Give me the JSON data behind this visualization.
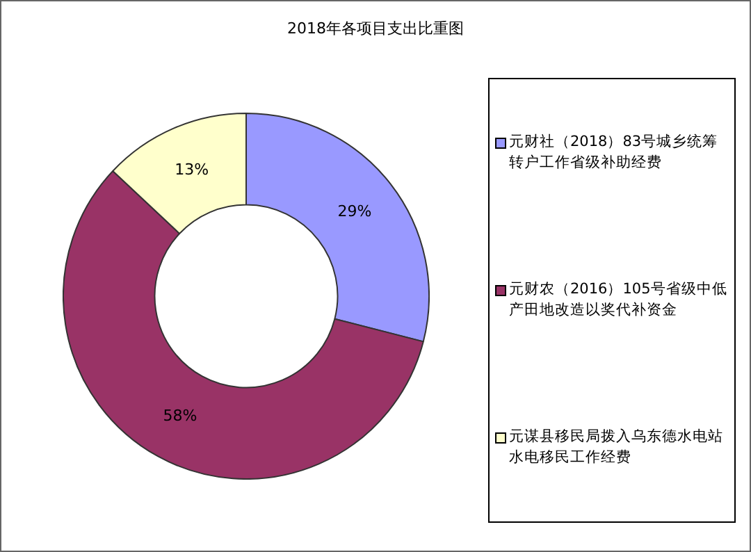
{
  "chart_data": {
    "type": "donut",
    "title": "2018年各项目支出比重图",
    "categories": [
      "元财社（2018）83号城乡统筹转户工作省级补助经费",
      "元财农（2016）105号省级中低产田地改造以奖代补资金",
      "元谋县移民局拨入乌东德水电站水电移民工作经费"
    ],
    "values": [
      29,
      58,
      13
    ],
    "colors": [
      "#9999ff",
      "#993366",
      "#ffffcc"
    ],
    "value_labels": [
      "29%",
      "58%",
      "13%"
    ],
    "legend": "right"
  }
}
